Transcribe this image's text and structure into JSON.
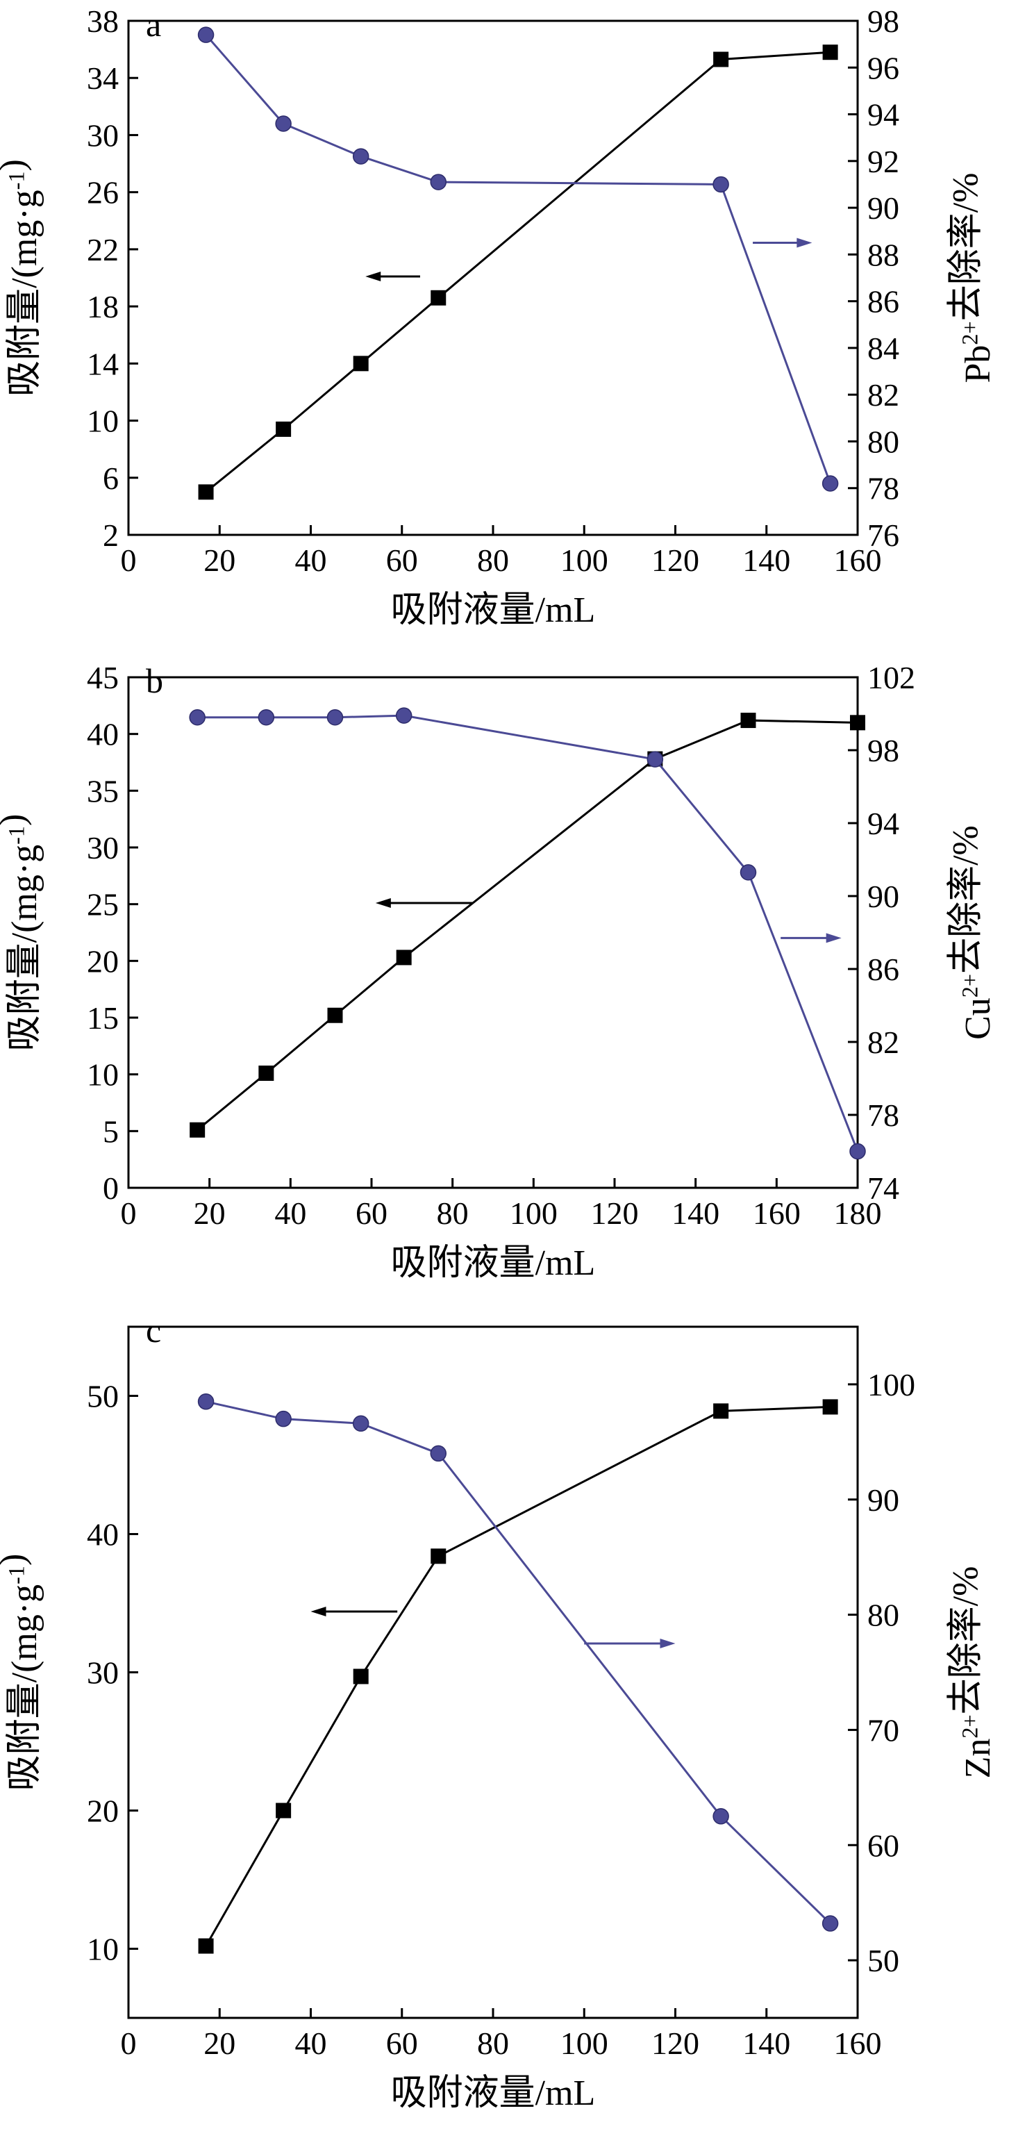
{
  "colors": {
    "primary": "#000000",
    "secondary": "#4b4a95"
  },
  "chart_data": [
    {
      "type": "line",
      "panel_label": "a",
      "xlabel": "吸附液量/mL",
      "ylabel": "吸附量/(mg·g⁻¹)",
      "y2label": "Pb²⁺去除率/%",
      "xlim": [
        0,
        160
      ],
      "ylim": [
        2,
        38
      ],
      "y2lim": [
        76,
        98
      ],
      "xticks": [
        0,
        20,
        40,
        60,
        80,
        100,
        120,
        140,
        160
      ],
      "yticks": [
        2,
        6,
        10,
        14,
        18,
        22,
        26,
        30,
        34,
        38
      ],
      "y2ticks": [
        76,
        78,
        80,
        82,
        84,
        86,
        88,
        90,
        92,
        94,
        96,
        98
      ],
      "grid": false,
      "series": [
        {
          "axis": "left",
          "marker": "square",
          "x": [
            17,
            34,
            51,
            68,
            130,
            154
          ],
          "values": [
            5.0,
            9.4,
            14.0,
            18.6,
            35.3,
            35.8
          ]
        },
        {
          "axis": "right",
          "marker": "circle",
          "x": [
            17,
            34,
            51,
            68,
            130,
            154
          ],
          "values": [
            97.4,
            93.6,
            92.2,
            91.1,
            91.0,
            78.2
          ]
        }
      ],
      "annotations": [
        {
          "type": "arrow",
          "direction": "left",
          "series_axis": "left",
          "x": [
            52,
            64
          ],
          "y": 20.1
        },
        {
          "type": "arrow",
          "direction": "right",
          "series_axis": "right",
          "x": [
            137,
            150
          ],
          "y": 88.5
        }
      ]
    },
    {
      "type": "line",
      "panel_label": "b",
      "xlabel": "吸附液量/mL",
      "ylabel": "吸附量/(mg·g⁻¹)",
      "y2label": "Cu²⁺去除率/%",
      "xlim": [
        0,
        180
      ],
      "ylim": [
        0,
        45
      ],
      "y2lim": [
        74,
        102
      ],
      "xticks": [
        0,
        20,
        40,
        60,
        80,
        100,
        120,
        140,
        160,
        180
      ],
      "yticks": [
        0,
        5,
        10,
        15,
        20,
        25,
        30,
        35,
        40,
        45
      ],
      "y2ticks": [
        74,
        78,
        82,
        86,
        90,
        94,
        98,
        102
      ],
      "grid": false,
      "series": [
        {
          "axis": "left",
          "marker": "square",
          "x": [
            17,
            34,
            51,
            68,
            130,
            153,
            180
          ],
          "values": [
            5.1,
            10.1,
            15.2,
            20.3,
            37.8,
            41.2,
            41.0
          ]
        },
        {
          "axis": "right",
          "marker": "circle",
          "x": [
            17,
            34,
            51,
            68,
            130,
            153,
            180
          ],
          "values": [
            99.8,
            99.8,
            99.8,
            99.9,
            97.5,
            91.3,
            76.0
          ]
        }
      ],
      "annotations": [
        {
          "type": "arrow",
          "direction": "left",
          "series_axis": "left",
          "x": [
            61,
            85
          ],
          "y": 25.1
        },
        {
          "type": "arrow",
          "direction": "right",
          "series_axis": "right",
          "x": [
            161,
            176
          ],
          "y": 87.7
        }
      ]
    },
    {
      "type": "line",
      "panel_label": "c",
      "xlabel": "吸附液量/mL",
      "ylabel": "吸附量/(mg·g⁻¹)",
      "y2label": "Zn²⁺去除率/%",
      "xlim": [
        0,
        160
      ],
      "ylim": [
        5,
        55
      ],
      "y2lim": [
        45,
        105
      ],
      "xticks": [
        0,
        20,
        40,
        60,
        80,
        100,
        120,
        140,
        160
      ],
      "yticks": [
        10,
        20,
        30,
        40,
        50
      ],
      "y2ticks": [
        50,
        60,
        70,
        80,
        90,
        100
      ],
      "grid": false,
      "series": [
        {
          "axis": "left",
          "marker": "square",
          "x": [
            17,
            34,
            51,
            68,
            130,
            154
          ],
          "values": [
            10.2,
            20.0,
            29.7,
            38.4,
            48.9,
            49.2
          ]
        },
        {
          "axis": "right",
          "marker": "circle",
          "x": [
            17,
            34,
            51,
            68,
            130,
            154
          ],
          "values": [
            98.5,
            97.0,
            96.6,
            94.0,
            62.5,
            53.2
          ]
        }
      ],
      "annotations": [
        {
          "type": "arrow",
          "direction": "left",
          "series_axis": "left",
          "x": [
            40,
            59
          ],
          "y": 34.4
        },
        {
          "type": "arrow",
          "direction": "right",
          "series_axis": "right",
          "x": [
            100,
            120
          ],
          "y": 77.5
        }
      ]
    }
  ]
}
